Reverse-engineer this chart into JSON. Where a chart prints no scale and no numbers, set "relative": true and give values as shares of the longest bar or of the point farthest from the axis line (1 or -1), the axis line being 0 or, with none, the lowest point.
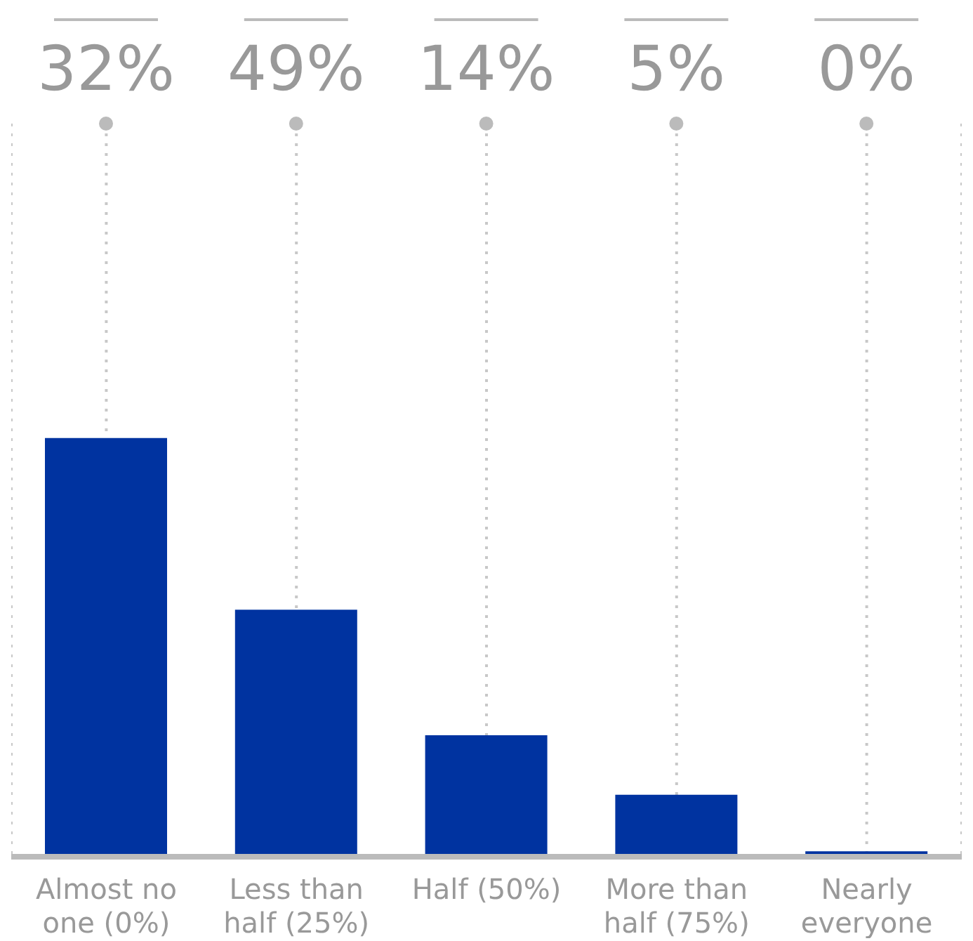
{
  "chart_data": {
    "type": "bar",
    "relative": true,
    "categories": [
      "Almost no one (0%)",
      "Less than half (25%)",
      "Half (50%)",
      "More than half (75%)",
      "Nearly everyone"
    ],
    "values": [
      1,
      0.59,
      0.29,
      0.148,
      0.013
    ],
    "annotations": [
      "32%",
      "49%",
      "14%",
      "5%",
      "0%"
    ],
    "color": "#0033a0",
    "grid": "x"
  }
}
